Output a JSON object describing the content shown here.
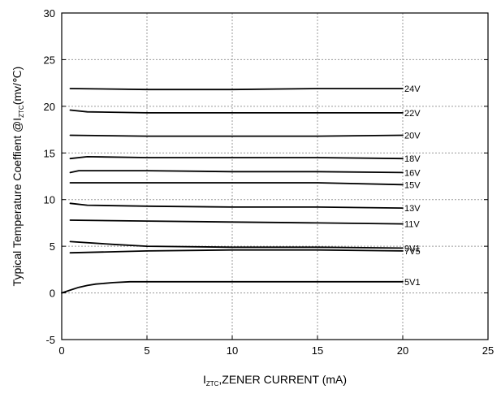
{
  "chart_data": {
    "type": "line",
    "title": "",
    "xlabel": {
      "prefix": "I",
      "subscript": "ZTC",
      "suffix": ",ZENER CURRENT (mA)"
    },
    "ylabel": {
      "prefix": "Typical Temperature Coeffient @I",
      "subscript": "ZTC",
      "suffix": "(mv/℃)"
    },
    "xlim": [
      0,
      25
    ],
    "ylim": [
      -5,
      30
    ],
    "x_ticks": [
      0,
      5,
      10,
      15,
      20,
      25
    ],
    "y_ticks": [
      -5,
      0,
      5,
      10,
      15,
      20,
      25,
      30
    ],
    "grid": true,
    "grid_style": "dotted",
    "series": [
      {
        "name": "24V",
        "points": [
          [
            0.5,
            21.9
          ],
          [
            5,
            21.8
          ],
          [
            10,
            21.8
          ],
          [
            15,
            21.9
          ],
          [
            20,
            21.9
          ]
        ]
      },
      {
        "name": "22V",
        "points": [
          [
            0.5,
            19.6
          ],
          [
            1.5,
            19.4
          ],
          [
            5,
            19.3
          ],
          [
            10,
            19.3
          ],
          [
            15,
            19.3
          ],
          [
            20,
            19.3
          ]
        ]
      },
      {
        "name": "20V",
        "points": [
          [
            0.5,
            16.9
          ],
          [
            5,
            16.8
          ],
          [
            10,
            16.8
          ],
          [
            15,
            16.8
          ],
          [
            20,
            16.9
          ]
        ]
      },
      {
        "name": "18V",
        "points": [
          [
            0.5,
            14.4
          ],
          [
            1.5,
            14.6
          ],
          [
            5,
            14.5
          ],
          [
            10,
            14.5
          ],
          [
            15,
            14.5
          ],
          [
            20,
            14.4
          ]
        ]
      },
      {
        "name": "16V",
        "points": [
          [
            0.5,
            12.9
          ],
          [
            1,
            13.1
          ],
          [
            5,
            13.1
          ],
          [
            10,
            13.0
          ],
          [
            15,
            13.0
          ],
          [
            20,
            12.9
          ]
        ]
      },
      {
        "name": "15V",
        "points": [
          [
            0.5,
            11.8
          ],
          [
            5,
            11.8
          ],
          [
            10,
            11.8
          ],
          [
            15,
            11.8
          ],
          [
            20,
            11.6
          ]
        ]
      },
      {
        "name": "13V",
        "points": [
          [
            0.5,
            9.6
          ],
          [
            1.5,
            9.4
          ],
          [
            5,
            9.3
          ],
          [
            10,
            9.2
          ],
          [
            15,
            9.2
          ],
          [
            20,
            9.1
          ]
        ]
      },
      {
        "name": "11V",
        "points": [
          [
            0.5,
            7.8
          ],
          [
            5,
            7.7
          ],
          [
            10,
            7.6
          ],
          [
            15,
            7.5
          ],
          [
            20,
            7.4
          ]
        ]
      },
      {
        "name": "9V1",
        "points": [
          [
            0.5,
            5.5
          ],
          [
            3,
            5.2
          ],
          [
            5,
            5.0
          ],
          [
            10,
            4.9
          ],
          [
            15,
            4.9
          ],
          [
            20,
            4.8
          ]
        ]
      },
      {
        "name": "7V5",
        "points": [
          [
            0.5,
            4.3
          ],
          [
            5,
            4.5
          ],
          [
            10,
            4.6
          ],
          [
            15,
            4.6
          ],
          [
            20,
            4.5
          ]
        ]
      },
      {
        "name": "5V1",
        "points": [
          [
            0,
            0.0
          ],
          [
            0.5,
            0.3
          ],
          [
            1,
            0.6
          ],
          [
            1.5,
            0.8
          ],
          [
            2,
            0.95
          ],
          [
            3,
            1.1
          ],
          [
            4,
            1.2
          ],
          [
            5,
            1.2
          ],
          [
            10,
            1.2
          ],
          [
            15,
            1.2
          ],
          [
            20,
            1.2
          ]
        ]
      }
    ],
    "line_color": "#000000",
    "grid_color": "#9a9a9a"
  }
}
